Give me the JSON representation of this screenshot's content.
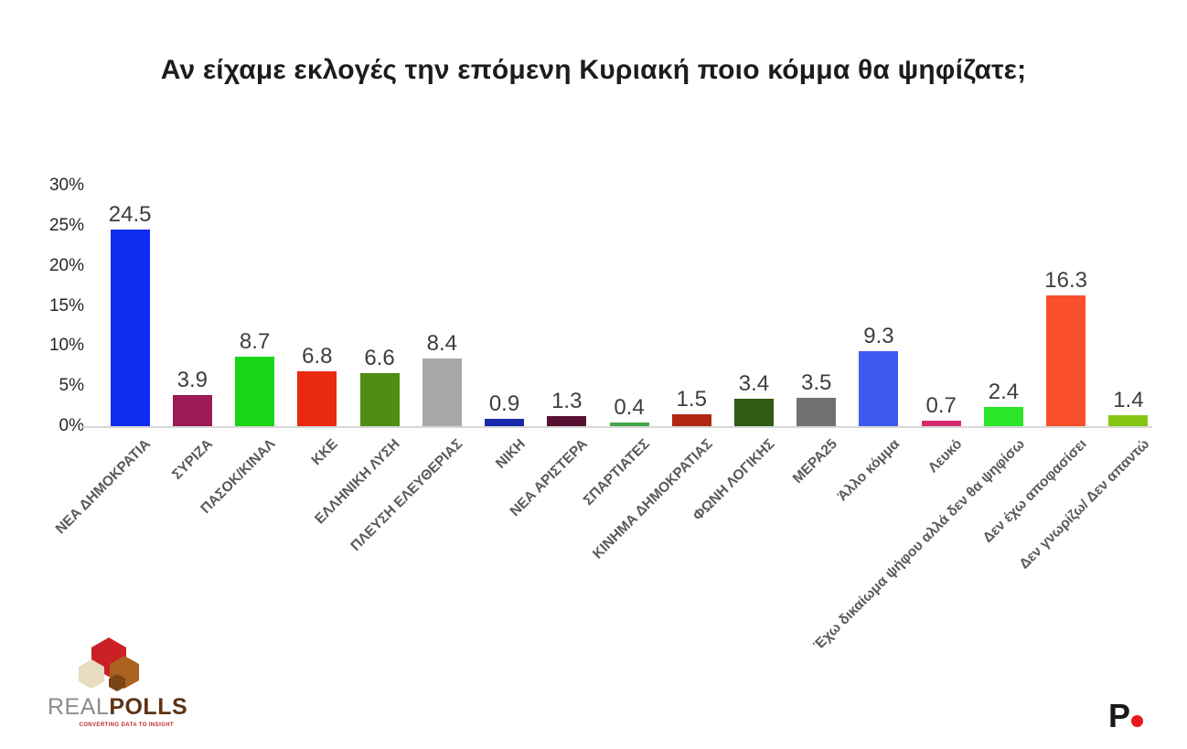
{
  "title": "Αν είχαμε εκλογές την επόμενη Κυριακή ποιο κόμμα θα ψηφίζατε;",
  "chart_data": {
    "type": "bar",
    "title": "Αν είχαμε εκλογές την επόμενη Κυριακή ποιο κόμμα θα ψηφίζατε;",
    "categories": [
      "ΝΕΑ ΔΗΜΟΚΡΑΤΙΑ",
      "ΣΥΡΙΖΑ",
      "ΠΑΣΟΚ/ΚΙΝΑΛ",
      "ΚΚΕ",
      "ΕΛΛΗΝΙΚΗ ΛΥΣΗ",
      "ΠΛΕΥΣΗ ΕΛΕΥΘΕΡΙΑΣ",
      "ΝΙΚΗ",
      "ΝΕΑ ΑΡΙΣΤΕΡΑ",
      "ΣΠΑΡΤΙΑΤΕΣ",
      "ΚΙΝΗΜΑ ΔΗΜΟΚΡΑΤΙΑΣ",
      "ΦΩΝΗ ΛΟΓΙΚΗΣ",
      "ΜΕΡΑ25",
      "Άλλο κόμμα",
      "Λευκό",
      "Έχω δικαίωμα ψήφου αλλά δεν θα ψηφίσω",
      "Δεν έχω αποφασίσει",
      "Δεν γνωρίζω/ Δεν απαντώ"
    ],
    "values": [
      24.5,
      3.9,
      8.7,
      6.8,
      6.6,
      8.4,
      0.9,
      1.3,
      0.4,
      1.5,
      3.4,
      3.5,
      9.3,
      0.7,
      2.4,
      16.3,
      1.4
    ],
    "bar_colors": [
      "#0e2df0",
      "#9c1a55",
      "#1bd617",
      "#e92910",
      "#4e8e13",
      "#a8a8a8",
      "#1828aa",
      "#571233",
      "#42a64a",
      "#b12713",
      "#2f5d13",
      "#717171",
      "#3d5bf0",
      "#d62a6e",
      "#2be52b",
      "#f94f2b",
      "#85c715"
    ],
    "xlabel": "",
    "ylabel": "",
    "ylim": [
      0,
      30
    ],
    "yticks": [
      "30%",
      "25%",
      "20%",
      "15%",
      "10%",
      "5%",
      "0%"
    ],
    "grid": false,
    "legend_position": "none",
    "value_labels_shown": true
  },
  "footer": {
    "realpolls": {
      "brand_real": "REAL",
      "brand_polls": "POLLS",
      "tagline": "CONVERTING DATA TO INSIGHT",
      "cube_colors": {
        "top": "#cc2027",
        "left": "#e8dcc0",
        "right": "#a9621f",
        "small": "#7a4414"
      }
    },
    "p_logo": {
      "letter": "P",
      "dot_color": "#e8191c",
      "letter_color": "#1b1b1b"
    }
  },
  "colors": {
    "background": "#ffffff",
    "axis_line": "#d8d8d8",
    "tick_text": "#262626",
    "value_text": "#3d3d3d",
    "category_text": "#595959",
    "title_text": "#1c1c1c"
  }
}
